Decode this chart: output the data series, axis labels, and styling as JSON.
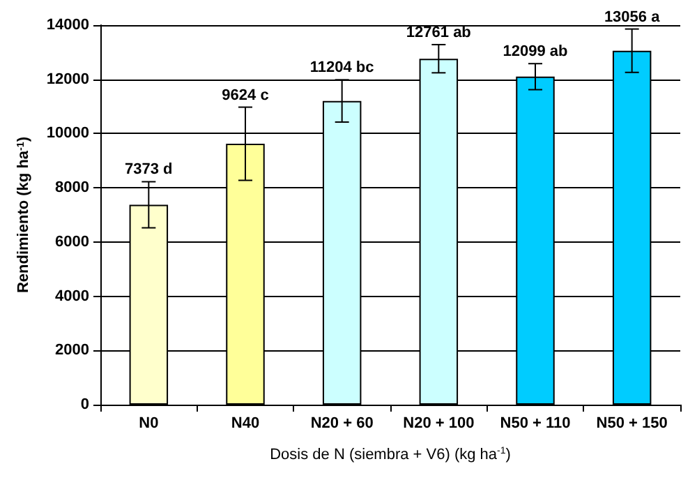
{
  "chart_data": {
    "type": "bar",
    "xlabel": "Dosis de N (siembra + V6) (kg ha$^{-1}$)",
    "ylabel": "Rendimiento (kg ha$^{-1}$)",
    "categories": [
      "N0",
      "N40",
      "N20 + 60",
      "N20 + 100",
      "N50 + 110",
      "N50 + 150"
    ],
    "values": [
      7373,
      9624,
      11204,
      12761,
      12099,
      13056
    ],
    "colors": [
      "#ffffcc",
      "#ffff99",
      "#ccffff",
      "#ccffff",
      "#00ccff",
      "#00ccff"
    ],
    "errors": [
      850,
      1350,
      780,
      520,
      480,
      800
    ],
    "value_labels": [
      "7373 d",
      "9624 c",
      "11204 bc",
      "12761 ab",
      "12099 ab",
      "13056 a"
    ],
    "ylim": [
      0,
      14000
    ],
    "yticks": [
      0,
      2000,
      4000,
      6000,
      8000,
      10000,
      12000,
      14000
    ],
    "grid": "y"
  }
}
